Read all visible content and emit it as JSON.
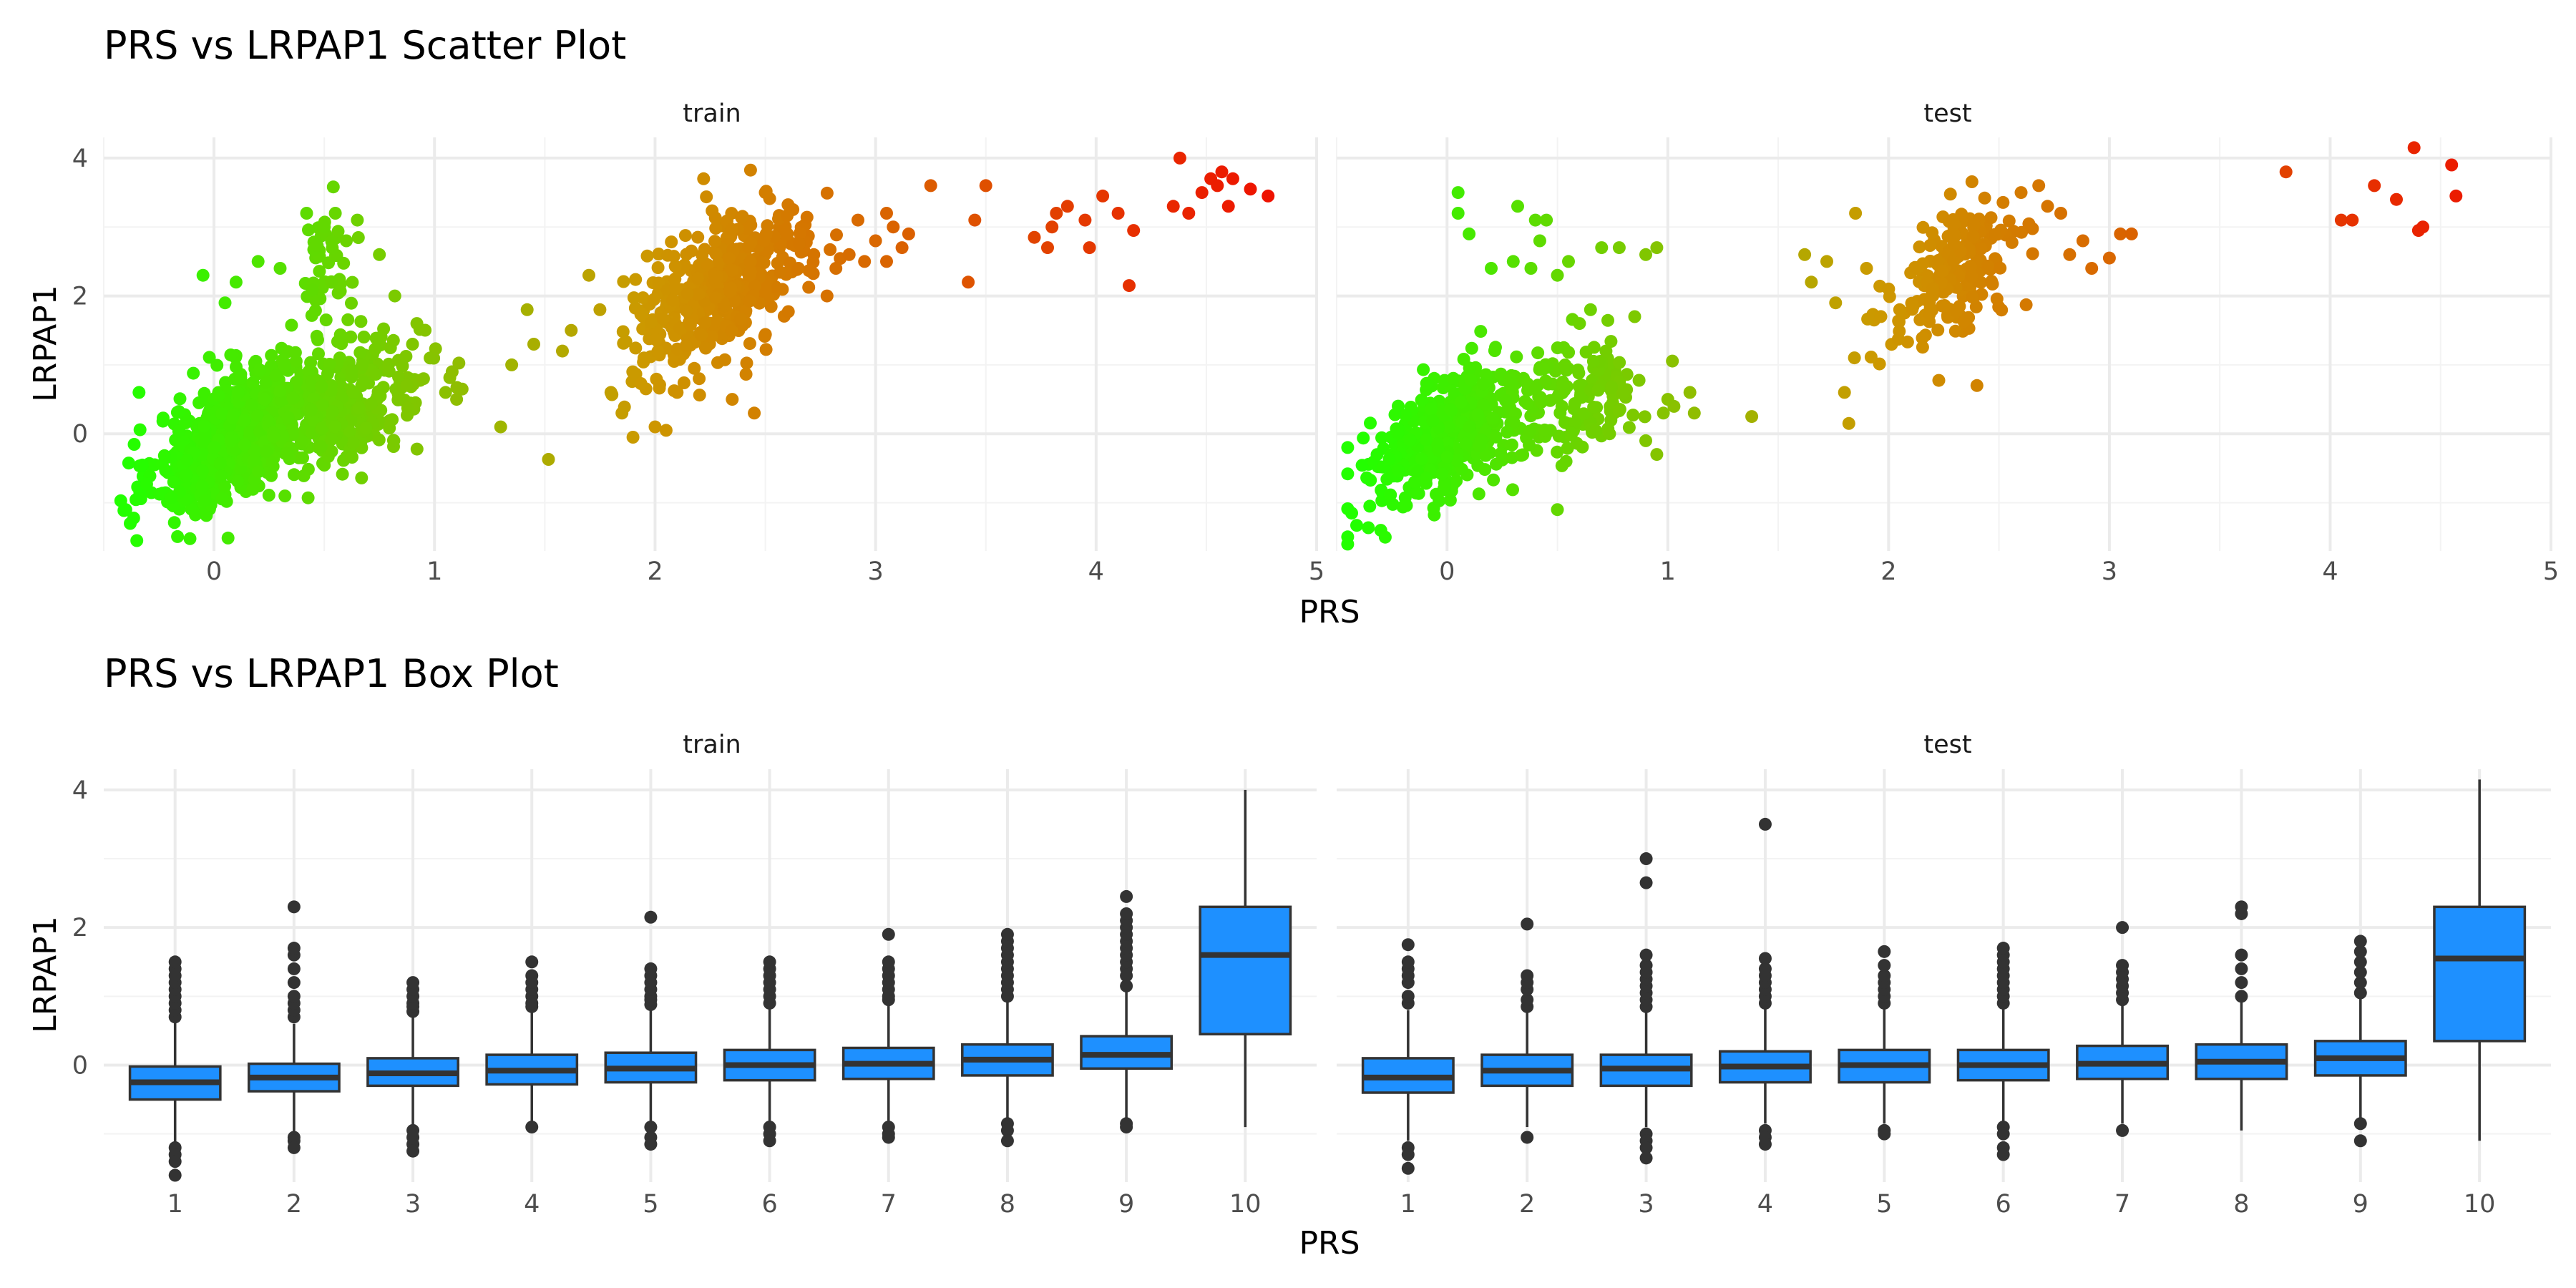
{
  "plots": [
    {
      "title": "PRS vs LRPAP1 Scatter Plot",
      "xlabel": "PRS",
      "ylabel": "LRPAP1"
    },
    {
      "title": "PRS vs LRPAP1 Box Plot",
      "xlabel": "PRS",
      "ylabel": "LRPAP1"
    }
  ],
  "panel_labels": [
    "train",
    "test"
  ],
  "chart_data": [
    {
      "type": "scatter",
      "title": "PRS vs LRPAP1 Scatter Plot",
      "xlabel": "PRS",
      "ylabel": "LRPAP1",
      "facets": [
        "train",
        "test"
      ],
      "xlim": [
        -0.5,
        5.0
      ],
      "ylim": [
        -1.7,
        4.3
      ],
      "x_ticks": [
        0,
        1,
        2,
        3,
        4,
        5
      ],
      "y_ticks": [
        0,
        2,
        4
      ],
      "x_tick_labels": [
        "0",
        "1",
        "2",
        "3",
        "4",
        "5"
      ],
      "y_tick_labels": [
        "0",
        "2",
        "4"
      ],
      "color_scale": {
        "low": "#22ff00",
        "mid": "#cc9900",
        "high": "#ee1100",
        "mapped_to": "PRS"
      },
      "grid": true,
      "clusters": {
        "train": [
          {
            "cx": 0.1,
            "cy": 0.0,
            "sx": 0.18,
            "sy": 0.55,
            "n": 700,
            "corr": 0.6
          },
          {
            "cx": 0.6,
            "cy": 0.4,
            "sx": 0.18,
            "sy": 0.45,
            "n": 300,
            "corr": 0.4
          },
          {
            "cx": 0.5,
            "cy": 2.4,
            "sx": 0.06,
            "sy": 0.5,
            "n": 45,
            "corr": 0.0
          },
          {
            "cx": 2.3,
            "cy": 2.1,
            "sx": 0.2,
            "sy": 0.55,
            "n": 450,
            "corr": 0.55
          }
        ],
        "test": [
          {
            "cx": 0.0,
            "cy": 0.0,
            "sx": 0.18,
            "sy": 0.55,
            "n": 400,
            "corr": 0.6
          },
          {
            "cx": 0.55,
            "cy": 0.4,
            "sx": 0.18,
            "sy": 0.45,
            "n": 160,
            "corr": 0.4
          },
          {
            "cx": 2.3,
            "cy": 2.3,
            "sx": 0.15,
            "sy": 0.5,
            "n": 200,
            "corr": 0.5
          }
        ]
      },
      "points": {
        "train": [
          [
            -0.4,
            -1.1
          ],
          [
            -0.38,
            -1.3
          ],
          [
            -0.35,
            -1.55
          ],
          [
            -0.34,
            0.6
          ],
          [
            -0.05,
            2.3
          ],
          [
            0.05,
            1.9
          ],
          [
            0.1,
            2.2
          ],
          [
            0.2,
            2.5
          ],
          [
            0.3,
            2.4
          ],
          [
            0.42,
            3.2
          ],
          [
            0.5,
            3.0
          ],
          [
            0.55,
            3.2
          ],
          [
            0.6,
            2.8
          ],
          [
            0.65,
            3.1
          ],
          [
            0.75,
            2.6
          ],
          [
            0.82,
            2.0
          ],
          [
            0.9,
            1.3
          ],
          [
            0.95,
            0.8
          ],
          [
            1.05,
            0.6
          ],
          [
            1.08,
            0.9
          ],
          [
            1.1,
            0.5
          ],
          [
            0.92,
            1.6
          ],
          [
            0.98,
            1.1
          ],
          [
            1.3,
            0.1
          ],
          [
            1.35,
            1.0
          ],
          [
            1.42,
            1.8
          ],
          [
            1.45,
            1.3
          ],
          [
            1.58,
            1.2
          ],
          [
            1.62,
            1.5
          ],
          [
            1.7,
            2.3
          ],
          [
            1.75,
            1.8
          ],
          [
            1.8,
            0.6
          ],
          [
            1.85,
            0.3
          ],
          [
            1.9,
            -0.05
          ],
          [
            1.95,
            1.1
          ],
          [
            2.0,
            0.1
          ],
          [
            2.05,
            0.05
          ],
          [
            2.1,
            0.6
          ],
          [
            2.2,
            0.8
          ],
          [
            2.35,
            0.5
          ],
          [
            2.45,
            0.3
          ],
          [
            2.22,
            3.7
          ],
          [
            2.5,
            3.5
          ],
          [
            2.6,
            2.9
          ],
          [
            2.65,
            2.4
          ],
          [
            2.72,
            2.6
          ],
          [
            2.78,
            2.0
          ],
          [
            2.82,
            2.4
          ],
          [
            2.88,
            2.6
          ],
          [
            2.92,
            3.1
          ],
          [
            2.95,
            2.5
          ],
          [
            3.0,
            2.8
          ],
          [
            3.05,
            3.2
          ],
          [
            3.08,
            3.0
          ],
          [
            3.12,
            2.7
          ],
          [
            3.15,
            2.9
          ],
          [
            3.05,
            2.5
          ],
          [
            3.25,
            3.6
          ],
          [
            3.42,
            2.2
          ],
          [
            3.45,
            3.1
          ],
          [
            3.5,
            3.6
          ],
          [
            3.72,
            2.85
          ],
          [
            3.78,
            2.7
          ],
          [
            3.8,
            3.0
          ],
          [
            3.82,
            3.2
          ],
          [
            3.87,
            3.3
          ],
          [
            3.95,
            3.1
          ],
          [
            3.97,
            2.7
          ],
          [
            4.03,
            3.45
          ],
          [
            4.1,
            3.2
          ],
          [
            4.15,
            2.15
          ],
          [
            4.17,
            2.95
          ],
          [
            4.35,
            3.3
          ],
          [
            4.38,
            4.0
          ],
          [
            4.42,
            3.2
          ],
          [
            4.48,
            3.5
          ],
          [
            4.52,
            3.7
          ],
          [
            4.55,
            3.6
          ],
          [
            4.57,
            3.8
          ],
          [
            4.6,
            3.3
          ],
          [
            4.62,
            3.7
          ],
          [
            4.7,
            3.55
          ],
          [
            4.78,
            3.45
          ]
        ],
        "test": [
          [
            -0.35,
            -1.05
          ],
          [
            -0.3,
            -1.4
          ],
          [
            -0.28,
            -1.5
          ],
          [
            0.05,
            3.5
          ],
          [
            0.05,
            3.2
          ],
          [
            0.1,
            2.9
          ],
          [
            0.2,
            2.4
          ],
          [
            0.3,
            2.5
          ],
          [
            0.32,
            3.3
          ],
          [
            0.38,
            2.4
          ],
          [
            0.4,
            3.1
          ],
          [
            0.42,
            2.8
          ],
          [
            0.45,
            3.1
          ],
          [
            0.5,
            2.3
          ],
          [
            0.55,
            2.5
          ],
          [
            0.6,
            1.6
          ],
          [
            0.65,
            1.8
          ],
          [
            0.7,
            2.7
          ],
          [
            0.72,
            1.2
          ],
          [
            0.78,
            2.7
          ],
          [
            0.85,
            1.7
          ],
          [
            0.9,
            2.6
          ],
          [
            0.95,
            2.7
          ],
          [
            0.9,
            -0.1
          ],
          [
            0.95,
            -0.3
          ],
          [
            0.98,
            0.3
          ],
          [
            0.5,
            -1.1
          ],
          [
            1.0,
            0.5
          ],
          [
            1.1,
            0.6
          ],
          [
            1.12,
            0.3
          ],
          [
            1.38,
            0.25
          ],
          [
            1.62,
            2.6
          ],
          [
            1.65,
            2.2
          ],
          [
            1.72,
            2.5
          ],
          [
            1.76,
            1.9
          ],
          [
            1.8,
            0.6
          ],
          [
            1.82,
            0.15
          ],
          [
            1.85,
            3.2
          ],
          [
            1.9,
            2.4
          ],
          [
            2.0,
            2.1
          ],
          [
            2.05,
            1.8
          ],
          [
            2.4,
            0.7
          ],
          [
            2.6,
            3.5
          ],
          [
            2.68,
            3.6
          ],
          [
            2.72,
            3.3
          ],
          [
            2.78,
            3.2
          ],
          [
            2.82,
            2.6
          ],
          [
            2.88,
            2.8
          ],
          [
            2.92,
            2.4
          ],
          [
            3.0,
            2.55
          ],
          [
            3.05,
            2.9
          ],
          [
            3.1,
            2.9
          ],
          [
            3.8,
            3.8
          ],
          [
            4.05,
            3.1
          ],
          [
            4.1,
            3.1
          ],
          [
            4.2,
            3.6
          ],
          [
            4.3,
            3.4
          ],
          [
            4.38,
            4.15
          ],
          [
            4.4,
            2.95
          ],
          [
            4.42,
            3.0
          ],
          [
            4.55,
            3.9
          ],
          [
            4.57,
            3.45
          ]
        ]
      }
    },
    {
      "type": "box",
      "title": "PRS vs LRPAP1 Box Plot",
      "xlabel": "PRS",
      "ylabel": "LRPAP1",
      "facets": [
        "train",
        "test"
      ],
      "categories": [
        "1",
        "2",
        "3",
        "4",
        "5",
        "6",
        "7",
        "8",
        "9",
        "10"
      ],
      "ylim": [
        -1.7,
        4.3
      ],
      "y_ticks": [
        0,
        2,
        4
      ],
      "y_tick_labels": [
        "0",
        "2",
        "4"
      ],
      "fill": "#1e90ff",
      "grid": true,
      "boxes": {
        "train": [
          {
            "q1": -0.5,
            "median": -0.25,
            "q3": -0.02,
            "lower": -1.15,
            "upper": 0.65,
            "outliers": [
              0.7,
              0.8,
              0.9,
              1.0,
              1.1,
              1.2,
              1.3,
              1.4,
              1.5,
              -1.2,
              -1.3,
              -1.4,
              -1.6
            ]
          },
          {
            "q1": -0.38,
            "median": -0.18,
            "q3": 0.02,
            "lower": -1.0,
            "upper": 0.6,
            "outliers": [
              0.7,
              0.8,
              0.9,
              1.0,
              1.2,
              1.4,
              1.6,
              1.7,
              2.3,
              -1.05,
              -1.1,
              -1.2
            ]
          },
          {
            "q1": -0.3,
            "median": -0.12,
            "q3": 0.1,
            "lower": -0.9,
            "upper": 0.72,
            "outliers": [
              0.78,
              0.85,
              0.9,
              1.0,
              1.1,
              1.2,
              -0.95,
              -1.05,
              -1.15,
              -1.25
            ]
          },
          {
            "q1": -0.28,
            "median": -0.08,
            "q3": 0.15,
            "lower": -0.85,
            "upper": 0.8,
            "outliers": [
              0.85,
              0.9,
              1.0,
              1.1,
              1.2,
              1.3,
              1.5,
              -0.9
            ]
          },
          {
            "q1": -0.25,
            "median": -0.05,
            "q3": 0.18,
            "lower": -0.85,
            "upper": 0.82,
            "outliers": [
              0.88,
              0.95,
              1.0,
              1.1,
              1.2,
              1.3,
              1.4,
              2.15,
              -0.9,
              -1.05,
              -1.15
            ]
          },
          {
            "q1": -0.22,
            "median": 0.0,
            "q3": 0.22,
            "lower": -0.85,
            "upper": 0.85,
            "outliers": [
              0.9,
              1.0,
              1.1,
              1.2,
              1.3,
              1.4,
              1.5,
              -0.9,
              -1.0,
              -1.1
            ]
          },
          {
            "q1": -0.2,
            "median": 0.02,
            "q3": 0.25,
            "lower": -0.85,
            "upper": 0.9,
            "outliers": [
              0.95,
              1.0,
              1.1,
              1.2,
              1.3,
              1.4,
              1.5,
              1.9,
              -0.9,
              -1.0,
              -1.05
            ]
          },
          {
            "q1": -0.15,
            "median": 0.08,
            "q3": 0.3,
            "lower": -0.8,
            "upper": 0.95,
            "outliers": [
              1.0,
              1.1,
              1.2,
              1.3,
              1.4,
              1.5,
              1.6,
              1.7,
              1.8,
              1.9,
              -0.85,
              -0.95,
              -1.1
            ]
          },
          {
            "q1": -0.05,
            "median": 0.15,
            "q3": 0.42,
            "lower": -0.8,
            "upper": 1.1,
            "outliers": [
              1.15,
              1.3,
              1.4,
              1.5,
              1.6,
              1.7,
              1.8,
              1.9,
              2.0,
              2.1,
              2.2,
              2.45,
              -0.85,
              -0.9
            ]
          },
          {
            "q1": 0.45,
            "median": 1.6,
            "q3": 2.3,
            "lower": -0.9,
            "upper": 4.0,
            "outliers": []
          }
        ],
        "test": [
          {
            "q1": -0.4,
            "median": -0.18,
            "q3": 0.1,
            "lower": -1.1,
            "upper": 0.8,
            "outliers": [
              0.9,
              1.0,
              1.2,
              1.3,
              1.4,
              1.5,
              1.75,
              -1.2,
              -1.3,
              -1.5
            ]
          },
          {
            "q1": -0.3,
            "median": -0.08,
            "q3": 0.15,
            "lower": -0.9,
            "upper": 0.8,
            "outliers": [
              0.85,
              0.95,
              1.1,
              1.2,
              1.3,
              2.05,
              -1.05
            ]
          },
          {
            "q1": -0.3,
            "median": -0.05,
            "q3": 0.15,
            "lower": -0.9,
            "upper": 0.8,
            "outliers": [
              0.85,
              0.95,
              1.05,
              1.15,
              1.25,
              1.35,
              1.45,
              1.6,
              2.65,
              3.0,
              -1.0,
              -1.1,
              -1.2,
              -1.35
            ]
          },
          {
            "q1": -0.25,
            "median": -0.02,
            "q3": 0.2,
            "lower": -0.85,
            "upper": 0.85,
            "outliers": [
              0.9,
              1.0,
              1.1,
              1.2,
              1.3,
              1.4,
              1.55,
              3.5,
              -0.95,
              -1.05,
              -1.15
            ]
          },
          {
            "q1": -0.25,
            "median": 0.0,
            "q3": 0.22,
            "lower": -0.85,
            "upper": 0.85,
            "outliers": [
              0.9,
              1.0,
              1.1,
              1.2,
              1.3,
              1.45,
              1.65,
              -0.95,
              -1.0
            ]
          },
          {
            "q1": -0.22,
            "median": 0.0,
            "q3": 0.22,
            "lower": -0.85,
            "upper": 0.85,
            "outliers": [
              0.9,
              1.0,
              1.1,
              1.2,
              1.3,
              1.4,
              1.5,
              1.6,
              1.7,
              -0.9,
              -1.0,
              -1.2,
              -1.3
            ]
          },
          {
            "q1": -0.2,
            "median": 0.02,
            "q3": 0.28,
            "lower": -0.85,
            "upper": 0.9,
            "outliers": [
              0.95,
              1.05,
              1.15,
              1.25,
              1.35,
              1.45,
              2.0,
              -0.95
            ]
          },
          {
            "q1": -0.2,
            "median": 0.05,
            "q3": 0.3,
            "lower": -0.95,
            "upper": 0.95,
            "outliers": [
              1.0,
              1.2,
              1.4,
              1.6,
              2.2,
              2.3
            ]
          },
          {
            "q1": -0.15,
            "median": 0.1,
            "q3": 0.35,
            "lower": -0.8,
            "upper": 1.0,
            "outliers": [
              1.05,
              1.2,
              1.35,
              1.5,
              1.65,
              1.8,
              -0.85,
              -1.1
            ]
          },
          {
            "q1": 0.35,
            "median": 1.55,
            "q3": 2.3,
            "lower": -1.1,
            "upper": 4.15,
            "outliers": []
          }
        ]
      }
    }
  ]
}
